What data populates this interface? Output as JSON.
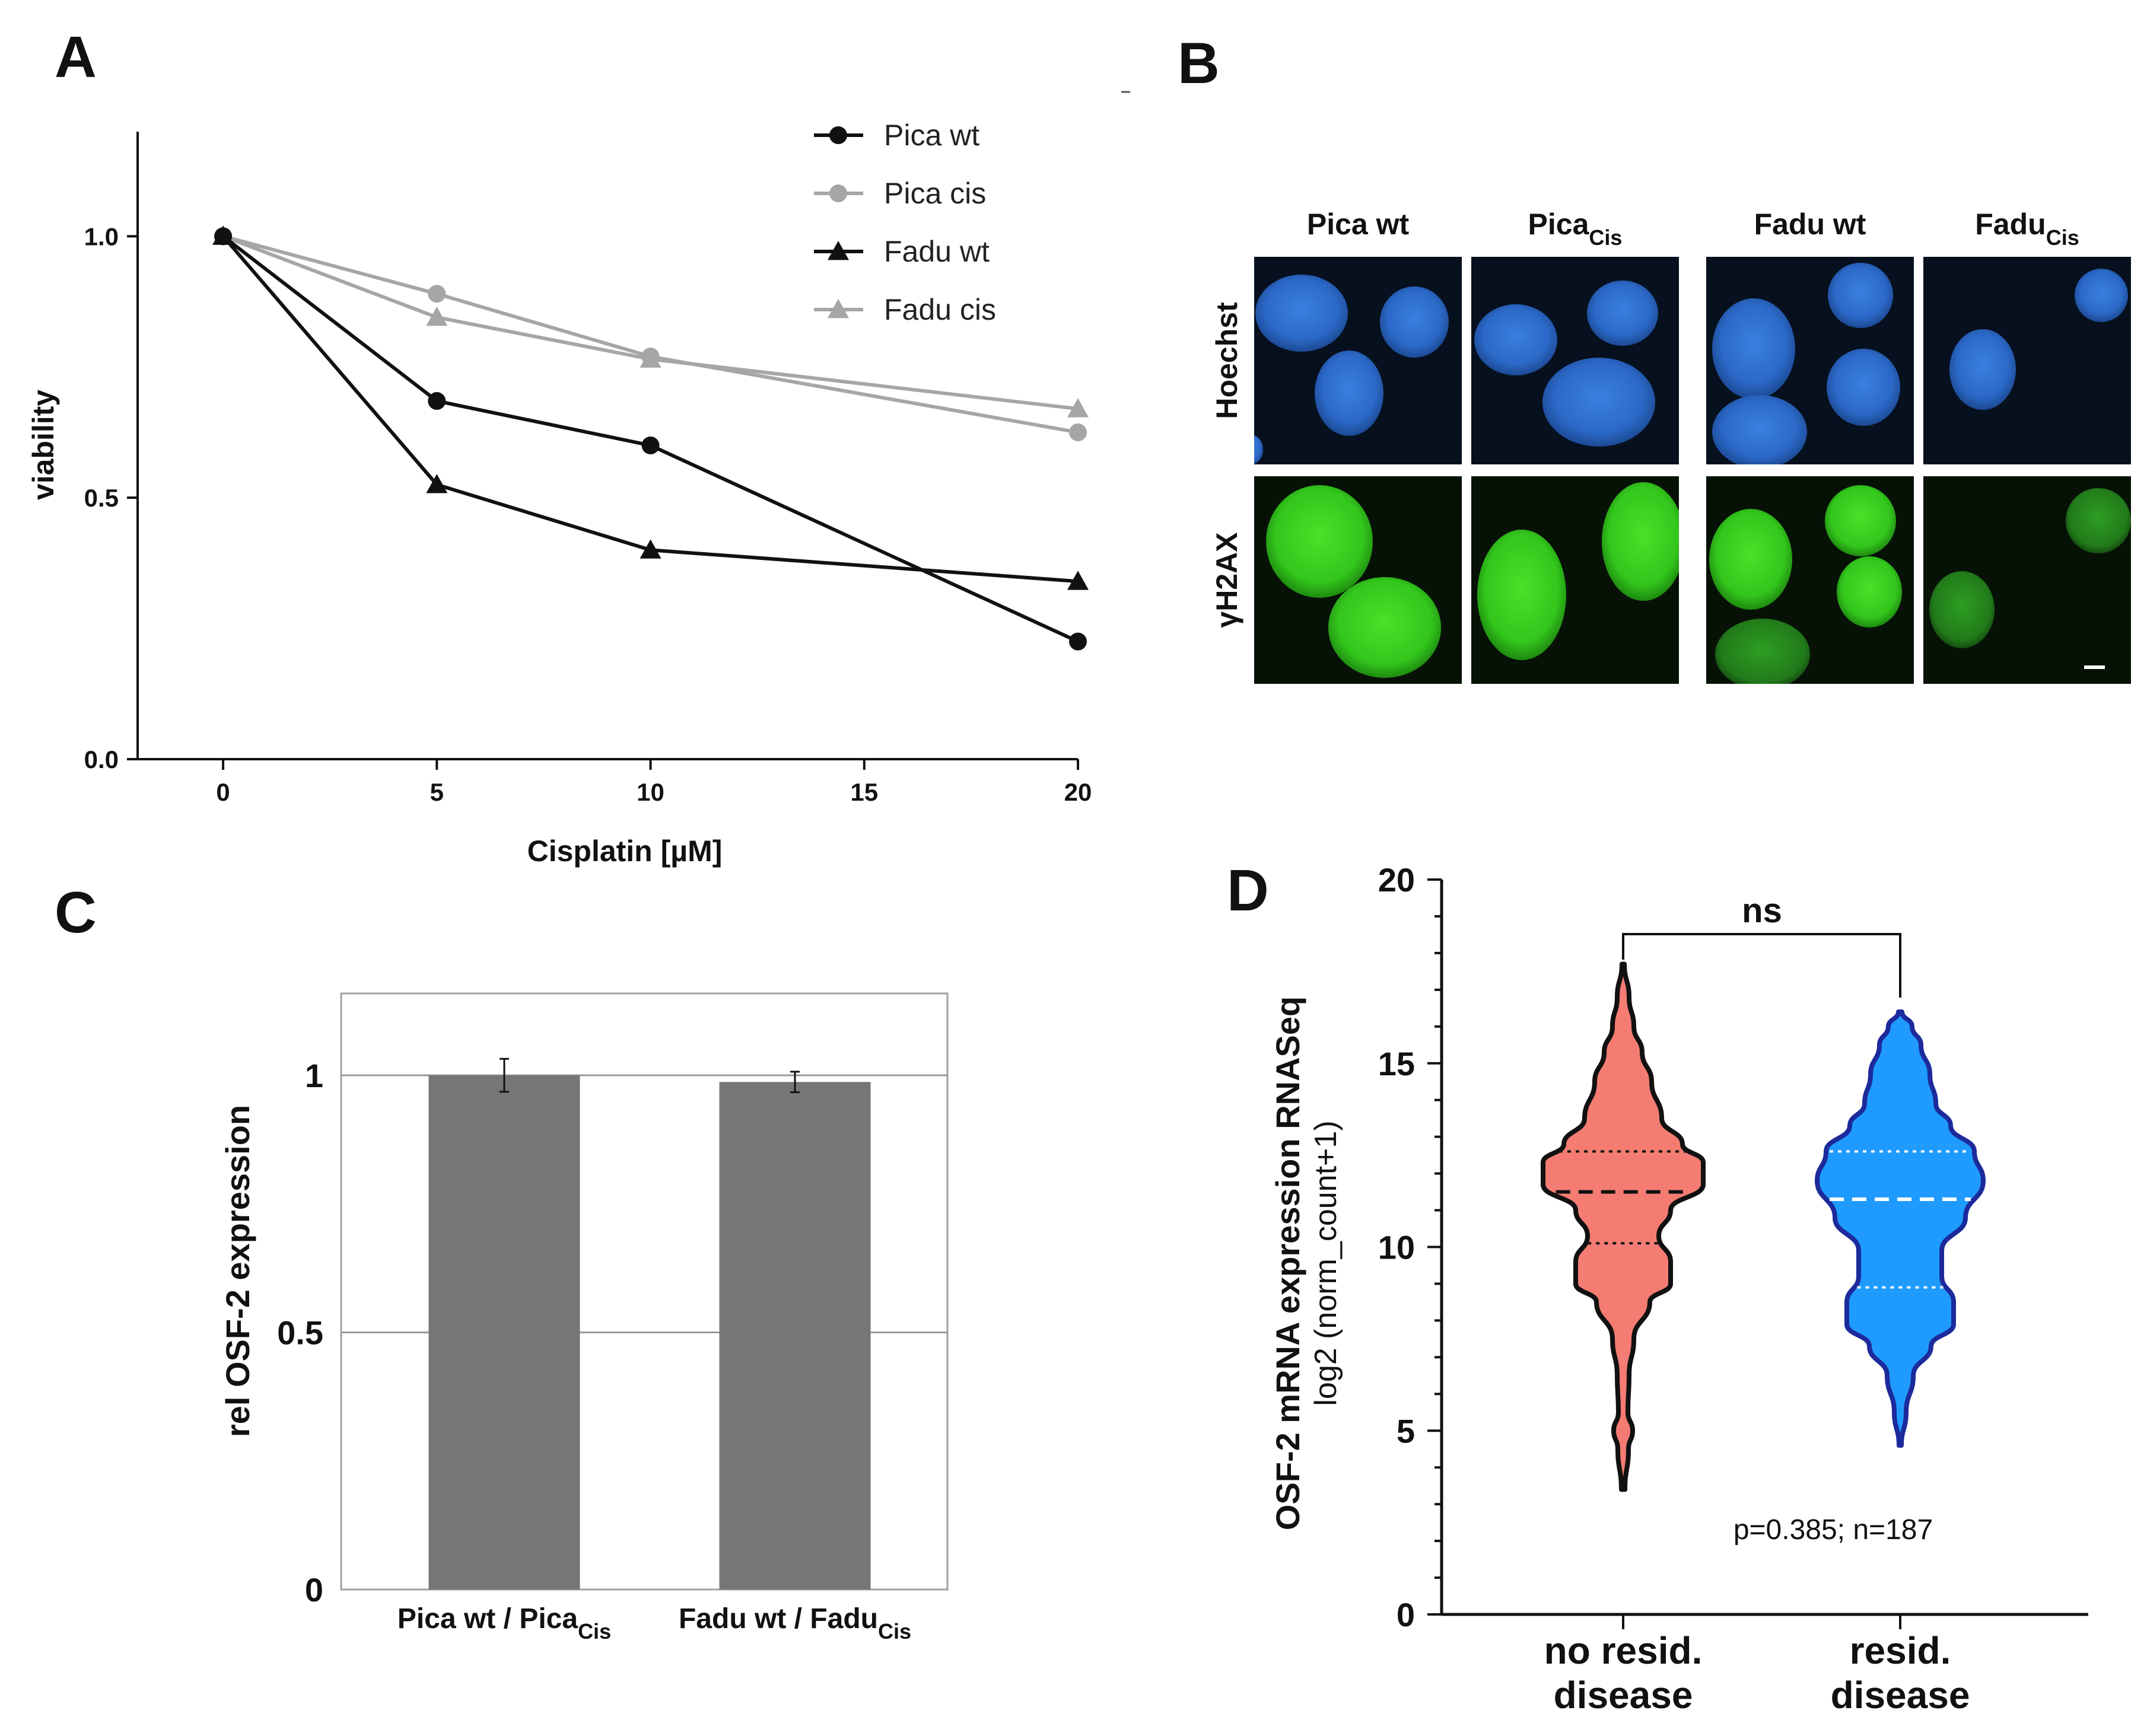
{
  "panels": {
    "A": "A",
    "B": "B",
    "C": "C",
    "D": "D"
  },
  "colors": {
    "black": "#111111",
    "grey": "#a6a6a6",
    "bar": "#767676",
    "violin_red": "#f47c72",
    "violin_blue": "#1f9bff",
    "violin_blue_edge": "#1c2a9c",
    "nucleus_blue": "#2d6fd0",
    "nucleus_green": "#33c020"
  },
  "microscopy": {
    "columns": [
      {
        "main": "Pica wt",
        "sub": ""
      },
      {
        "main": "Pica",
        "sub": "Cis"
      },
      {
        "main": "Fadu wt",
        "sub": ""
      },
      {
        "main": "Fadu",
        "sub": "Cis"
      }
    ],
    "rows": [
      {
        "label": "Hoechst",
        "stain": "blue"
      },
      {
        "label": "γH2AX",
        "stain": "green"
      }
    ]
  },
  "chart_data": [
    {
      "panel": "A",
      "type": "line",
      "title": "",
      "xlabel": "Cisplatin [µM]",
      "ylabel": "viability",
      "xlim": [
        -2,
        20
      ],
      "ylim": [
        0,
        1.2
      ],
      "xticks": [
        0,
        5,
        10,
        15,
        20
      ],
      "yticks": [
        0.0,
        0.5,
        1.0
      ],
      "ytick_labels": [
        "0.0",
        "0.5",
        "1.0"
      ],
      "x": [
        0,
        5,
        10,
        20
      ],
      "legend_position": "top-right",
      "series": [
        {
          "name": "Pica wt",
          "marker": "circle",
          "color": "#111111",
          "values": [
            1.0,
            0.685,
            0.6,
            0.225
          ]
        },
        {
          "name": "Pica cis",
          "marker": "circle",
          "color": "#a6a6a6",
          "values": [
            1.0,
            0.89,
            0.77,
            0.625
          ]
        },
        {
          "name": "Fadu wt",
          "marker": "triangle",
          "color": "#111111",
          "values": [
            1.0,
            0.525,
            0.4,
            0.34
          ]
        },
        {
          "name": "Fadu cis",
          "marker": "triangle",
          "color": "#a6a6a6",
          "values": [
            1.0,
            0.845,
            0.765,
            0.67
          ]
        }
      ]
    },
    {
      "panel": "C",
      "type": "bar",
      "title": "",
      "ylabel": "rel OSF-2 expression",
      "ylim": [
        0,
        1.1
      ],
      "yticks": [
        0,
        0.5,
        1
      ],
      "ytick_labels": [
        "0",
        "0.5",
        "1"
      ],
      "gridlines": [
        0.5,
        1
      ],
      "categories": [
        {
          "main": "Pica wt / Pica",
          "sub": "Cis"
        },
        {
          "main": "Fadu wt / Fadu",
          "sub": "Cis"
        }
      ],
      "values": [
        1.0,
        0.987
      ],
      "errors": [
        0.032,
        0.02
      ]
    },
    {
      "panel": "D",
      "type": "violin",
      "title": "",
      "ylabel": "OSF-2 mRNA expression RNASeq",
      "ylabel2": "log2 (norm_count+1)",
      "ylim": [
        0,
        20
      ],
      "yticks": [
        0,
        5,
        10,
        15,
        20
      ],
      "ytick_labels": [
        "0",
        "5",
        "10",
        "15",
        "20"
      ],
      "categories": [
        {
          "line1": "no resid.",
          "line2": "disease"
        },
        {
          "line1": "resid.",
          "line2": "disease"
        }
      ],
      "groups": [
        {
          "q1": 10.1,
          "median": 11.5,
          "q3": 12.6,
          "min": 3.4,
          "max": 17.7
        },
        {
          "q1": 8.9,
          "median": 11.3,
          "q3": 12.6,
          "min": 4.6,
          "max": 16.4
        }
      ],
      "significance": "ns",
      "stat_text": "p=0.385; n=187"
    }
  ]
}
